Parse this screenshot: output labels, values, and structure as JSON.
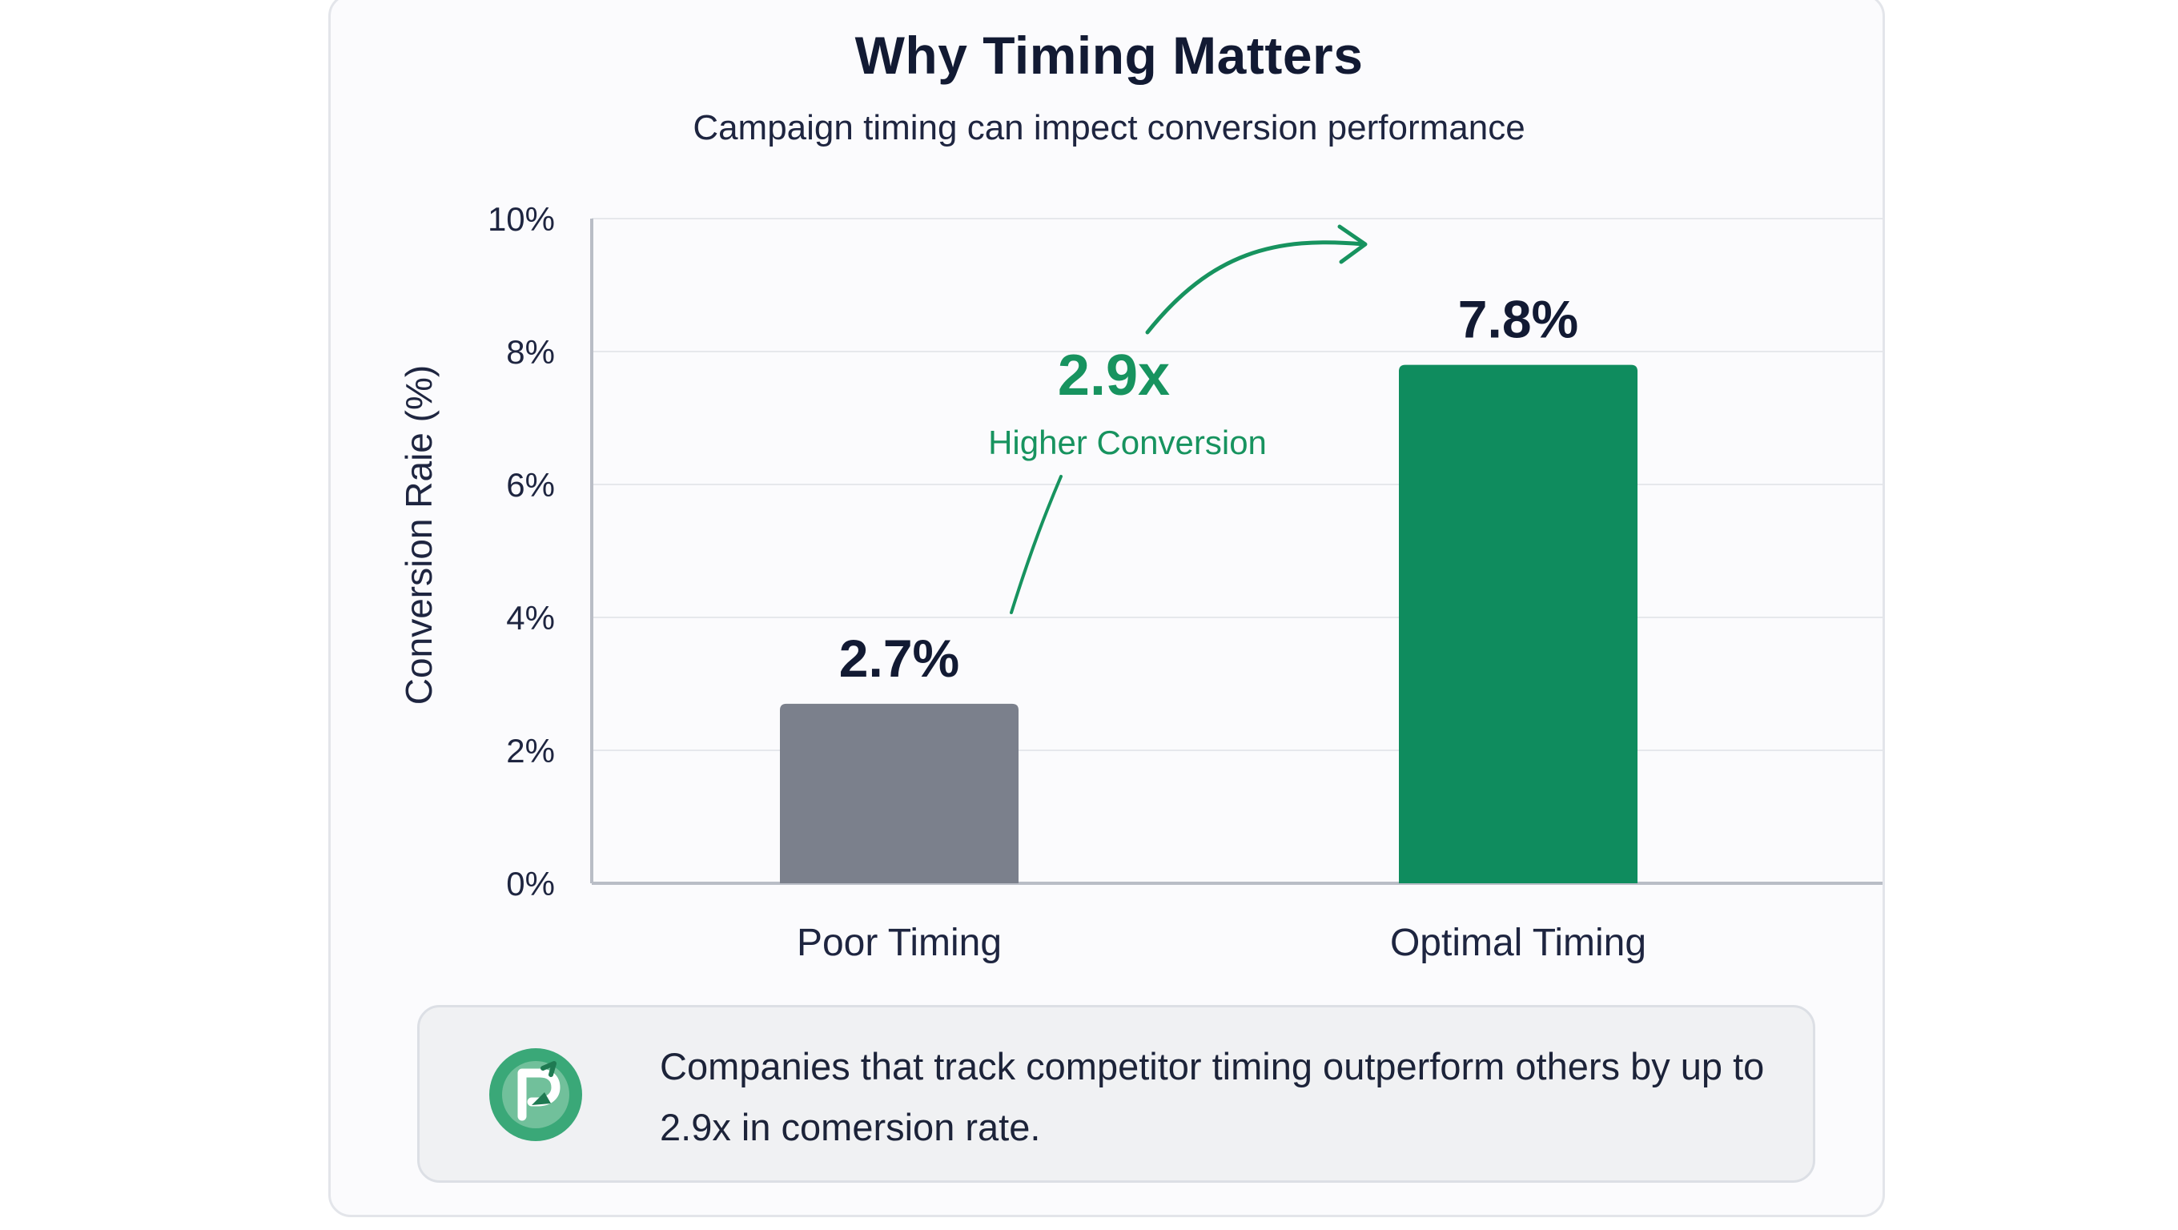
{
  "header": {
    "title": "Why Timing Matters",
    "subtitle": "Campaign timing can impect conversion performance"
  },
  "chart_data": {
    "type": "bar",
    "categories": [
      "Poor Timing",
      "Optimal Timing"
    ],
    "values": [
      2.7,
      7.8
    ],
    "value_labels": [
      "2.7%",
      "7.8%"
    ],
    "ylabel": "Conversion Raie (%)",
    "ylim": [
      0,
      10
    ],
    "yticks": [
      0,
      2,
      4,
      6,
      8,
      10
    ],
    "ytick_labels": [
      "0%",
      "2%",
      "4%",
      "6%",
      "8%",
      "10%"
    ],
    "grid": true,
    "bar_colors": [
      "#7b808c",
      "#0f8c5e"
    ],
    "annotation": {
      "multiplier": "2.9x",
      "text": "Higher Conversion",
      "color": "#17935f"
    }
  },
  "callout": {
    "icon": "growth-badge-icon",
    "text": "Companies that track competitor timing outperform others by up to 2.9x in comersion rate."
  }
}
